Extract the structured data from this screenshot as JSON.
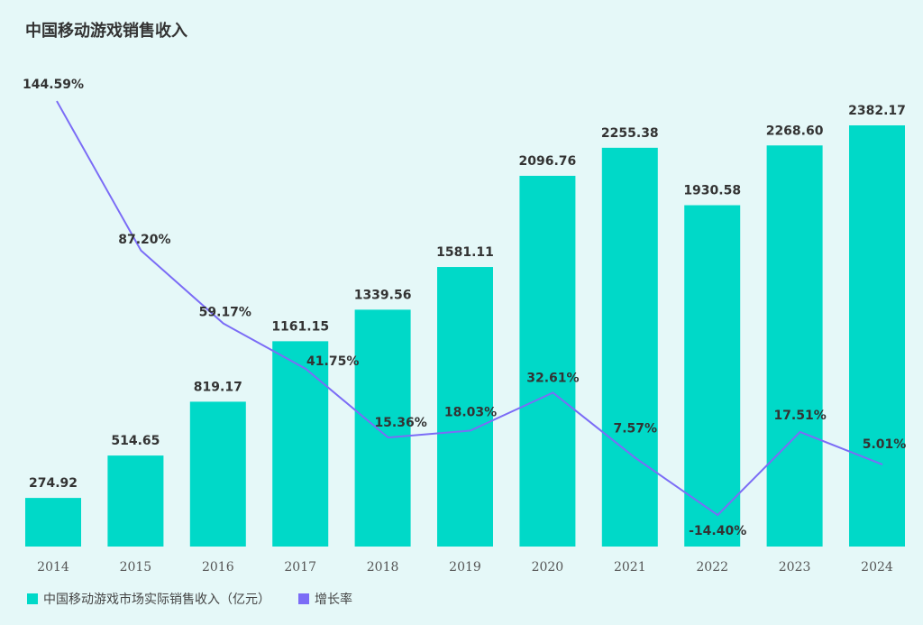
{
  "chart_data": {
    "type": "bar+line",
    "title": "中国移动游戏销售收入",
    "categories": [
      "2014",
      "2015",
      "2016",
      "2017",
      "2018",
      "2019",
      "2020",
      "2021",
      "2022",
      "2023",
      "2024"
    ],
    "series": [
      {
        "name": "中国移动游戏市场实际销售收入（亿元）",
        "type": "bar",
        "color": "#00d9c8",
        "values": [
          274.92,
          514.65,
          819.17,
          1161.15,
          1339.56,
          1581.11,
          2096.76,
          2255.38,
          1930.58,
          2268.6,
          2382.17
        ],
        "labels": [
          "274.92",
          "514.65",
          "819.17",
          "1161.15",
          "1339.56",
          "1581.11",
          "2096.76",
          "2255.38",
          "1930.58",
          "2268.60",
          "2382.17"
        ]
      },
      {
        "name": "增长率",
        "type": "line",
        "color": "#7b6cf6",
        "values": [
          144.59,
          87.2,
          59.17,
          41.75,
          15.36,
          18.03,
          32.61,
          7.57,
          -14.4,
          17.51,
          5.01
        ],
        "labels": [
          "144.59%",
          "87.20%",
          "59.17%",
          "41.75%",
          "15.36%",
          "18.03%",
          "32.61%",
          "7.57%",
          "-14.40%",
          "17.51%",
          "5.01%"
        ]
      }
    ],
    "grid": false,
    "legend": "bottom-left"
  }
}
